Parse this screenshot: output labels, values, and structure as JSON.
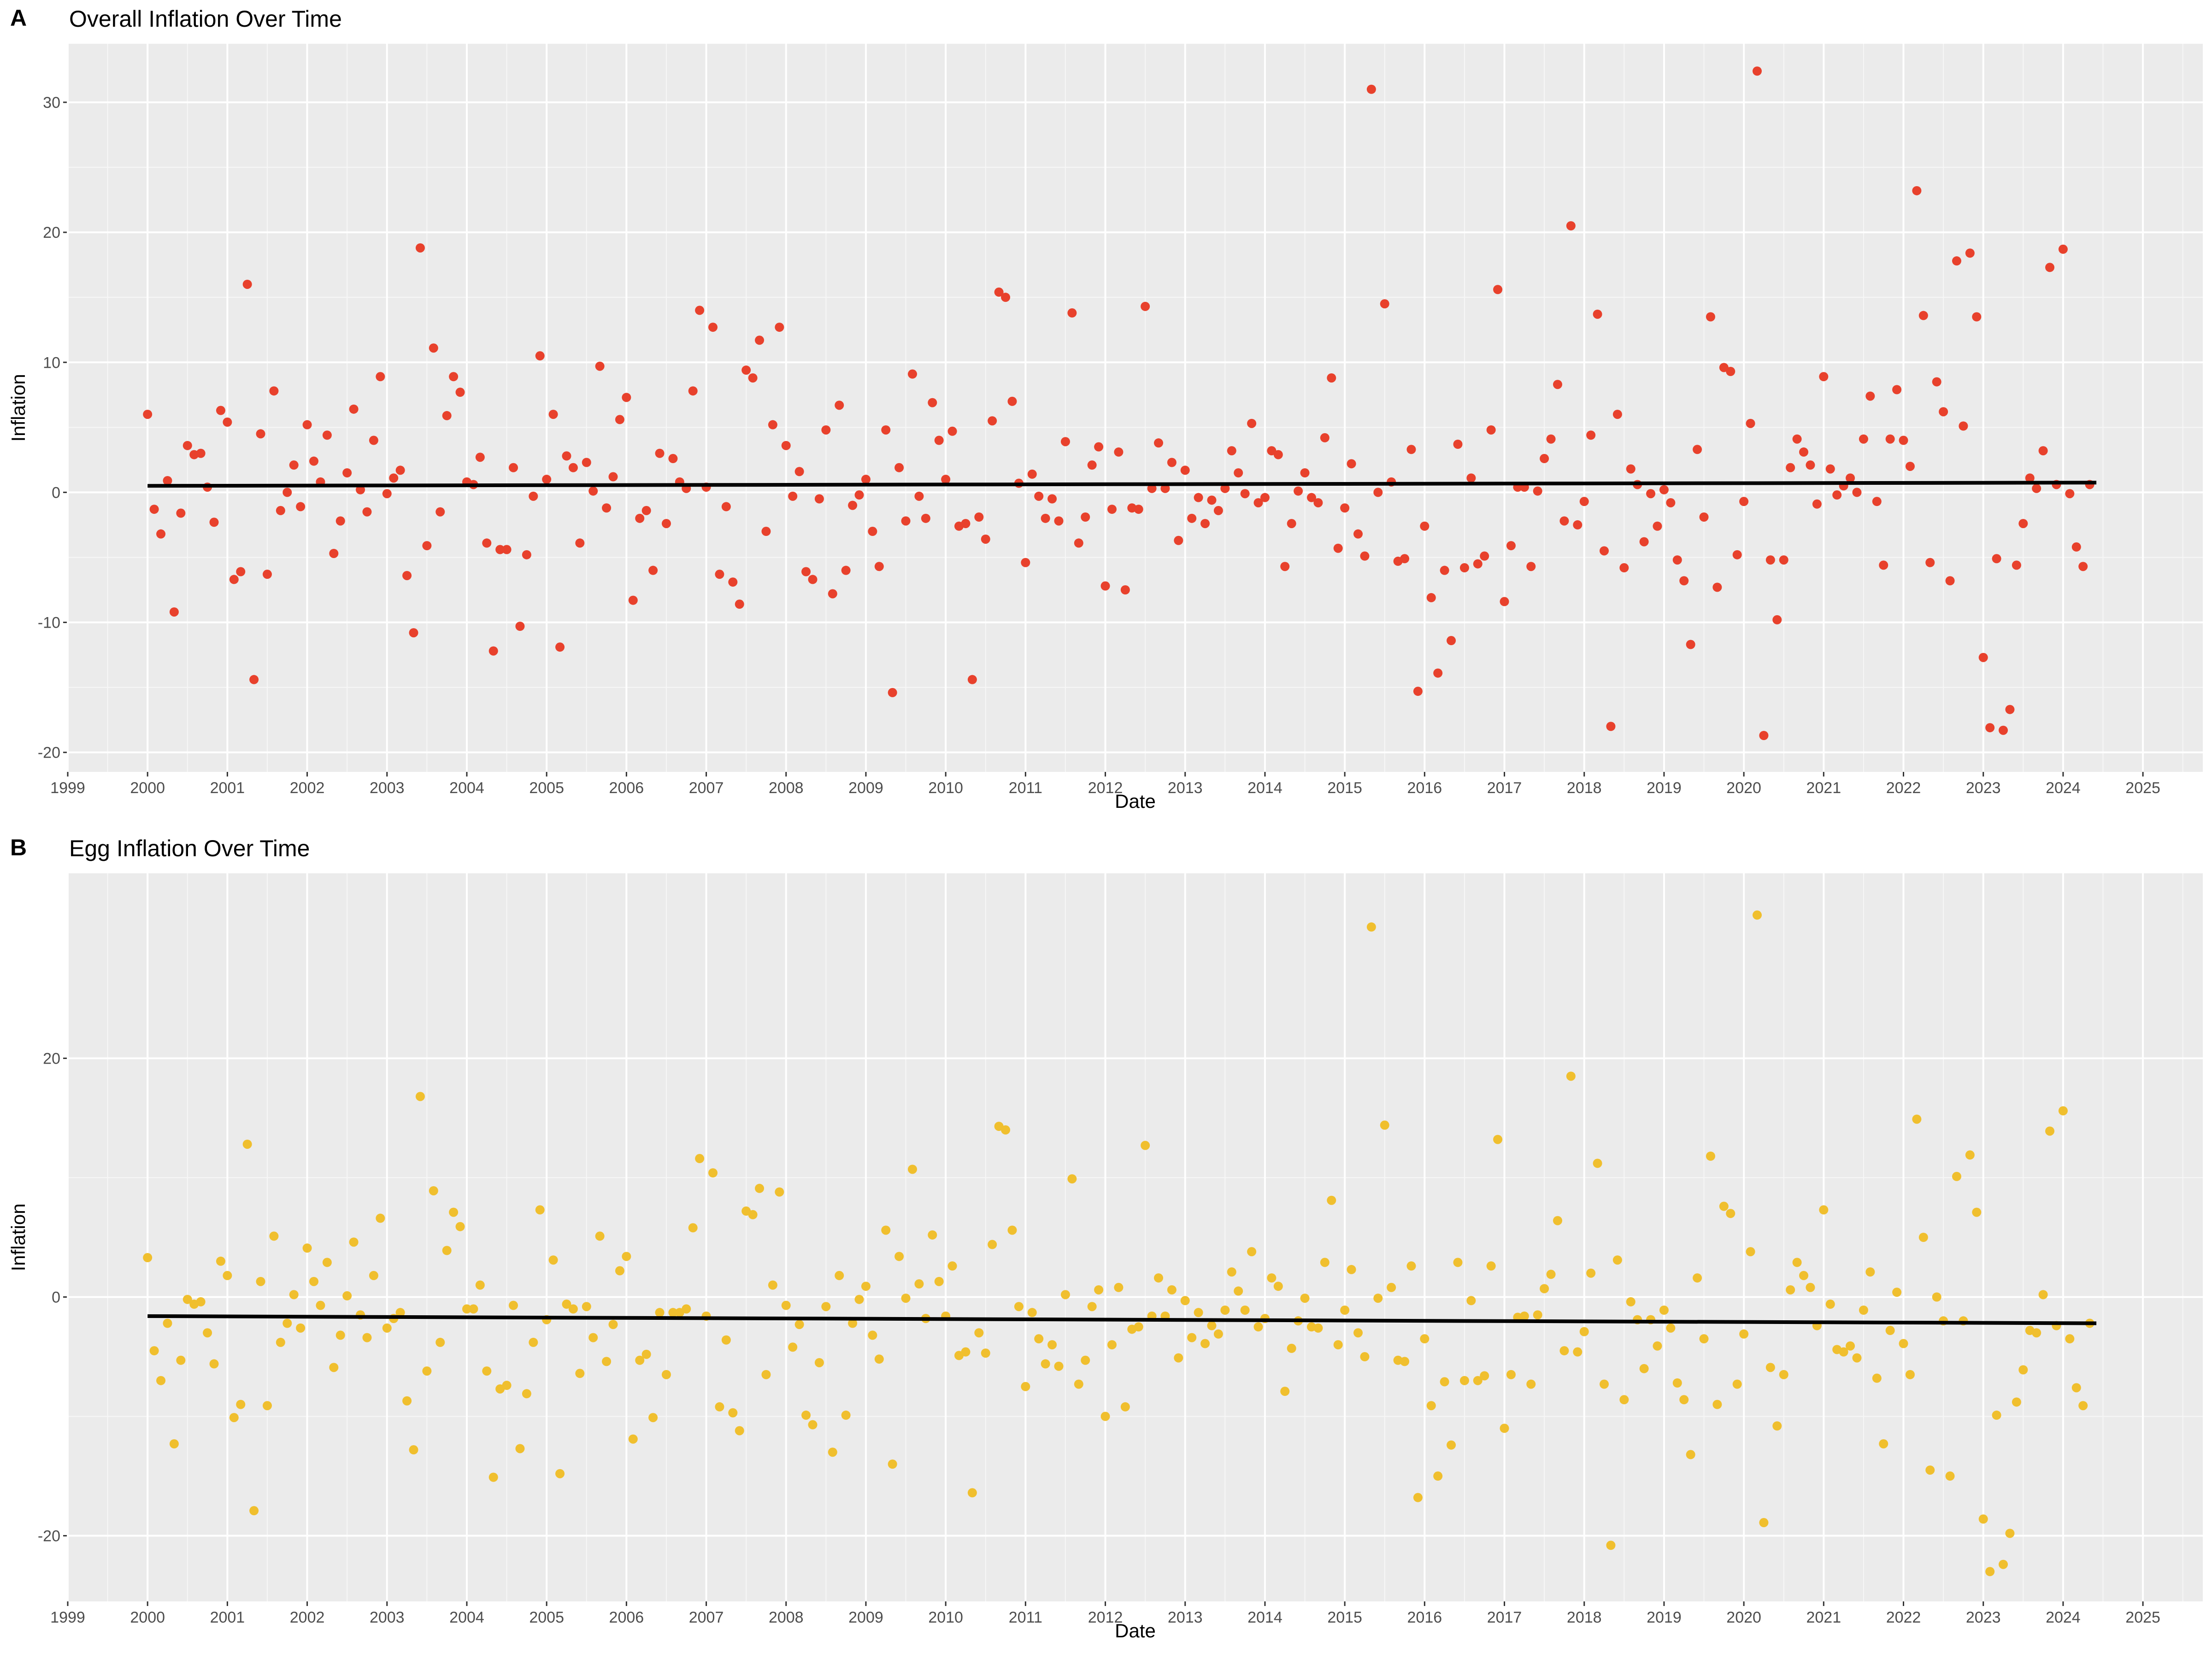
{
  "chart_data": [
    {
      "panel": "A",
      "type": "scatter",
      "title": "Overall Inflation Over Time",
      "xlabel": "Date",
      "ylabel": "Inflation",
      "x_ticks": [
        "1999",
        "2000",
        "2001",
        "2002",
        "2003",
        "2004",
        "2005",
        "2006",
        "2007",
        "2008",
        "2009",
        "2010",
        "2011",
        "2012",
        "2013",
        "2014",
        "2015",
        "2016",
        "2017",
        "2018",
        "2019",
        "2020",
        "2021",
        "2022",
        "2023",
        "2024",
        "2025"
      ],
      "y_ticks": [
        -20,
        -10,
        0,
        10,
        20,
        30
      ],
      "xlim": [
        "1999-01",
        "2025-10"
      ],
      "ylim": [
        -21.5,
        34.5
      ],
      "grid": true,
      "point_color": "#e8412c",
      "x_start": "2000-01",
      "x_end": "2024-06",
      "values": [
        6.0,
        -1.3,
        -3.2,
        0.9,
        -9.2,
        -1.6,
        3.6,
        2.9,
        3.0,
        0.4,
        -2.3,
        6.3,
        5.4,
        -6.7,
        -6.1,
        16.0,
        -14.4,
        4.5,
        -6.3,
        7.8,
        -1.4,
        0.0,
        2.1,
        -1.1,
        5.2,
        2.4,
        0.8,
        4.4,
        -4.7,
        -2.2,
        1.5,
        6.4,
        0.2,
        -1.5,
        4.0,
        8.9,
        -0.1,
        1.1,
        1.7,
        -6.4,
        -10.8,
        18.8,
        -4.1,
        11.1,
        -1.5,
        5.9,
        8.9,
        7.7,
        0.8,
        0.6,
        2.7,
        -3.9,
        -12.2,
        -4.4,
        -4.4,
        1.9,
        -10.3,
        -4.8,
        -0.3,
        10.5,
        1.0,
        6.0,
        -11.9,
        2.8,
        1.9,
        -3.9,
        2.3,
        0.1,
        9.7,
        -1.2,
        1.2,
        5.6,
        7.3,
        -8.3,
        -2.0,
        -1.4,
        -6.0,
        3.0,
        -2.4,
        2.6,
        0.8,
        0.3,
        7.8,
        14.0,
        0.4,
        12.7,
        -6.3,
        -1.1,
        -6.9,
        -8.6,
        9.4,
        8.8,
        11.7,
        -3.0,
        5.2,
        12.7,
        3.6,
        -0.3,
        1.6,
        -6.1,
        -6.7,
        -0.5,
        4.8,
        -7.8,
        6.7,
        -6.0,
        -1.0,
        -0.2,
        1.0,
        -3.0,
        -5.7,
        4.8,
        -15.4,
        1.9,
        -2.2,
        9.1,
        -0.3,
        -2.0,
        6.9,
        4.0,
        1.0,
        4.7,
        -2.6,
        -2.4,
        -14.4,
        -1.9,
        -3.6,
        5.5,
        15.4,
        15.0,
        7.0,
        0.7,
        -5.4,
        1.4,
        -0.3,
        -2.0,
        -0.5,
        -2.2,
        3.9,
        13.8,
        -3.9,
        -1.9,
        2.1,
        3.5,
        -7.2,
        -1.3,
        3.1,
        -7.5,
        -1.2,
        -1.3,
        14.3,
        0.3,
        3.8,
        0.3,
        2.3,
        -3.7,
        1.7,
        -2.0,
        -0.4,
        -2.4,
        -0.6,
        -1.4,
        0.3,
        3.2,
        1.5,
        -0.1,
        5.3,
        -0.8,
        -0.4,
        3.2,
        2.9,
        -5.7,
        -2.4,
        0.1,
        1.5,
        -0.4,
        -0.8,
        4.2,
        8.8,
        -4.3,
        -1.2,
        2.2,
        -3.2,
        -4.9,
        31.0,
        0.0,
        14.5,
        0.8,
        -5.3,
        -5.1,
        3.3,
        -15.3,
        -2.6,
        -8.1,
        -13.9,
        -6.0,
        -11.4,
        3.7,
        -5.8,
        1.1,
        -5.5,
        -4.9,
        4.8,
        15.6,
        -8.4,
        -4.1,
        0.4,
        0.4,
        -5.7,
        0.1,
        2.6,
        4.1,
        8.3,
        -2.2,
        20.5,
        -2.5,
        -0.7,
        4.4,
        13.7,
        -4.5,
        -18.0,
        6.0,
        -5.8,
        1.8,
        0.6,
        -3.8,
        -0.1,
        -2.6,
        0.2,
        -0.8,
        -5.2,
        -6.8,
        -11.7,
        3.3,
        -1.9,
        13.5,
        -7.3,
        9.6,
        9.3,
        -4.8,
        -0.7,
        5.3,
        32.4,
        -18.7,
        -5.2,
        -9.8,
        -5.2,
        1.9,
        4.1,
        3.1,
        2.1,
        -0.9,
        8.9,
        1.8,
        -0.2,
        0.5,
        1.1,
        0.0,
        4.1,
        7.4,
        -0.7,
        -5.6,
        4.1,
        7.9,
        4.0,
        2.0,
        23.2,
        13.6,
        -5.4,
        8.5,
        6.2,
        -6.8,
        17.8,
        5.1,
        18.4,
        13.5,
        -12.7,
        -18.1,
        -5.1,
        -18.3,
        -16.7,
        -5.6,
        -2.4,
        1.1,
        0.3,
        3.2,
        17.3,
        0.6,
        18.7,
        -0.1,
        -4.2,
        -5.7,
        0.6
      ],
      "trend": {
        "start": 0.5,
        "end": 0.75,
        "color": "#000000"
      }
    },
    {
      "panel": "B",
      "type": "scatter",
      "title": "Egg Inflation Over Time",
      "xlabel": "Date",
      "ylabel": "Inflation",
      "x_ticks": [
        "1999",
        "2000",
        "2001",
        "2002",
        "2003",
        "2004",
        "2005",
        "2006",
        "2007",
        "2008",
        "2009",
        "2010",
        "2011",
        "2012",
        "2013",
        "2014",
        "2015",
        "2016",
        "2017",
        "2018",
        "2019",
        "2020",
        "2021",
        "2022",
        "2023",
        "2024",
        "2025"
      ],
      "y_ticks": [
        -20,
        0,
        20
      ],
      "xlim": [
        "1999-01",
        "2025-10"
      ],
      "ylim": [
        -25.5,
        35.5
      ],
      "grid": true,
      "point_color": "#f0bf2e",
      "x_start": "2000-01",
      "x_end": "2024-06",
      "values": [
        3.3,
        -4.5,
        -7.0,
        -2.2,
        -12.3,
        -5.3,
        -0.2,
        -0.6,
        -0.4,
        -3.0,
        -5.6,
        3.0,
        1.8,
        -10.1,
        -9.0,
        12.8,
        -17.9,
        1.3,
        -9.1,
        5.1,
        -3.8,
        -2.2,
        0.2,
        -2.6,
        4.1,
        1.3,
        -0.7,
        2.9,
        -5.9,
        -3.2,
        0.1,
        4.6,
        -1.5,
        -3.4,
        1.8,
        6.6,
        -2.6,
        -1.8,
        -1.3,
        -8.7,
        -12.8,
        16.8,
        -6.2,
        8.9,
        -3.8,
        3.9,
        7.1,
        5.9,
        -1.0,
        -1.0,
        1.0,
        -6.2,
        -15.1,
        -7.7,
        -7.4,
        -0.7,
        -12.7,
        -8.1,
        -3.8,
        7.3,
        -1.9,
        3.1,
        -14.8,
        -0.6,
        -1.0,
        -6.4,
        -0.8,
        -3.4,
        5.1,
        -5.4,
        -2.3,
        2.2,
        3.4,
        -11.9,
        -5.3,
        -4.8,
        -10.1,
        -1.3,
        -6.5,
        -1.3,
        -1.3,
        -1.0,
        5.8,
        11.6,
        -1.6,
        10.4,
        -9.2,
        -3.6,
        -9.7,
        -11.2,
        7.2,
        6.9,
        9.1,
        -6.5,
        1.0,
        8.8,
        -0.7,
        -4.2,
        -2.3,
        -9.9,
        -10.7,
        -5.5,
        -0.8,
        -13.0,
        1.8,
        -9.9,
        -2.2,
        -0.2,
        0.9,
        -3.2,
        -5.2,
        5.6,
        -14.0,
        3.4,
        -0.1,
        10.7,
        1.1,
        -1.8,
        5.2,
        1.3,
        -1.6,
        2.6,
        -4.9,
        -4.6,
        -16.4,
        -3.0,
        -4.7,
        4.4,
        14.3,
        14.0,
        5.6,
        -0.8,
        -7.5,
        -1.3,
        -3.5,
        -5.6,
        -4.0,
        -5.8,
        0.2,
        9.9,
        -7.3,
        -5.3,
        -0.8,
        0.6,
        -10.0,
        -4.0,
        0.8,
        -9.2,
        -2.7,
        -2.5,
        12.7,
        -1.6,
        1.6,
        -1.6,
        0.6,
        -5.1,
        -0.3,
        -3.4,
        -1.3,
        -3.9,
        -2.4,
        -3.1,
        -1.1,
        2.1,
        0.5,
        -1.1,
        3.8,
        -2.5,
        -1.8,
        1.6,
        0.9,
        -7.9,
        -4.3,
        -2.0,
        -0.1,
        -2.5,
        -2.6,
        2.9,
        8.1,
        -4.0,
        -1.1,
        2.3,
        -3.0,
        -5.0,
        31.0,
        -0.1,
        14.4,
        0.8,
        -5.3,
        -5.4,
        2.6,
        -16.8,
        -3.5,
        -9.1,
        -15.0,
        -7.1,
        -12.4,
        2.9,
        -7.0,
        -0.3,
        -7.0,
        -6.6,
        2.6,
        13.2,
        -11.0,
        -6.5,
        -1.7,
        -1.6,
        -7.3,
        -1.5,
        0.7,
        1.9,
        6.4,
        -4.5,
        18.5,
        -4.6,
        -2.9,
        2.0,
        11.2,
        -7.3,
        -20.8,
        3.1,
        -8.6,
        -0.4,
        -1.9,
        -6.0,
        -1.9,
        -4.1,
        -1.1,
        -2.6,
        -7.2,
        -8.6,
        -13.2,
        1.6,
        -3.5,
        11.8,
        -9.0,
        7.6,
        7.0,
        -7.3,
        -3.1,
        3.8,
        32.0,
        -18.9,
        -5.9,
        -10.8,
        -6.5,
        0.6,
        2.9,
        1.8,
        0.8,
        -2.4,
        7.3,
        -0.6,
        -4.4,
        -4.6,
        -4.1,
        -5.1,
        -1.1,
        2.1,
        -6.8,
        -12.3,
        -2.8,
        0.4,
        -3.9,
        -6.5,
        14.9,
        5.0,
        -14.5,
        0.0,
        -2.0,
        -15.0,
        10.1,
        -2.0,
        11.9,
        7.1,
        -18.6,
        -23.0,
        -9.9,
        -22.4,
        -19.8,
        -8.8,
        -6.1,
        -2.8,
        -3.0,
        0.2,
        13.9,
        -2.4,
        15.6,
        -3.5,
        -7.6,
        -9.1,
        -2.2
      ],
      "trend": {
        "start": -1.6,
        "end": -2.2,
        "color": "#000000"
      }
    }
  ]
}
